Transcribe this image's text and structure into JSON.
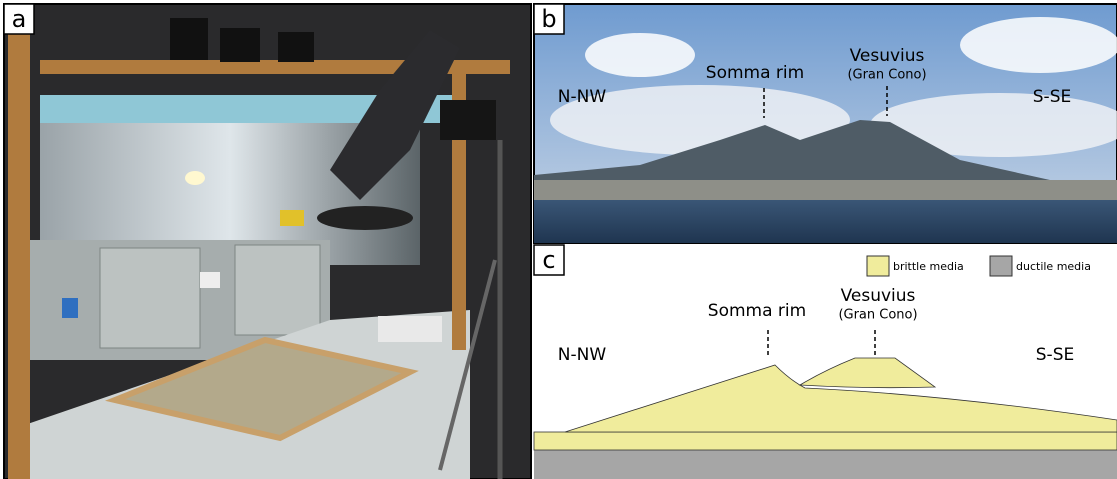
{
  "panels": {
    "a": {
      "label": "a"
    },
    "b": {
      "label": "b",
      "left": "N-NW",
      "right": "S-SE",
      "somma": "Somma rim",
      "vesuvius": "Vesuvius",
      "vesuvius_sub": "(Gran Cono)"
    },
    "c": {
      "label": "c",
      "left": "N-NW",
      "right": "S-SE",
      "somma": "Somma rim",
      "vesuvius": "Vesuvius",
      "vesuvius_sub": "(Gran Cono)",
      "legend": {
        "brittle": "brittle media",
        "ductile": "ductile media"
      }
    }
  }
}
